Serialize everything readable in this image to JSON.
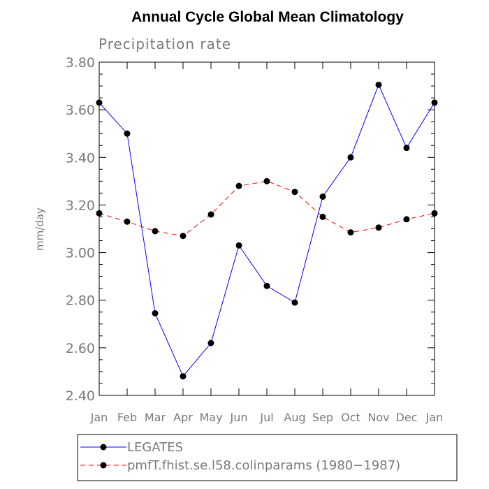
{
  "chart_data": {
    "type": "line",
    "title": "Annual Cycle Global Mean Climatology",
    "subtitle": "Precipitation rate",
    "xlabel": "",
    "ylabel": "mm/day",
    "categories": [
      "Jan",
      "Feb",
      "Mar",
      "Apr",
      "May",
      "Jun",
      "Jul",
      "Aug",
      "Sep",
      "Oct",
      "Nov",
      "Dec",
      "Jan"
    ],
    "ylim": [
      2.4,
      3.8
    ],
    "yticks": [
      "2.40",
      "2.60",
      "2.80",
      "3.00",
      "3.20",
      "3.40",
      "3.60",
      "3.80"
    ],
    "grid": false,
    "legend_position": "bottom",
    "series": [
      {
        "name": "LEGATES",
        "color": "#0000ff",
        "style": "solid",
        "values": [
          3.63,
          3.5,
          2.745,
          2.48,
          2.62,
          3.03,
          2.86,
          2.79,
          3.235,
          3.4,
          3.705,
          3.44,
          3.63
        ]
      },
      {
        "name": "pmfT.fhist.se.l58.colinparams (1980−1987)",
        "color": "#ff0000",
        "style": "dashed",
        "values": [
          3.165,
          3.13,
          3.09,
          3.07,
          3.16,
          3.28,
          3.3,
          3.255,
          3.15,
          3.085,
          3.105,
          3.14,
          3.165
        ]
      }
    ]
  }
}
